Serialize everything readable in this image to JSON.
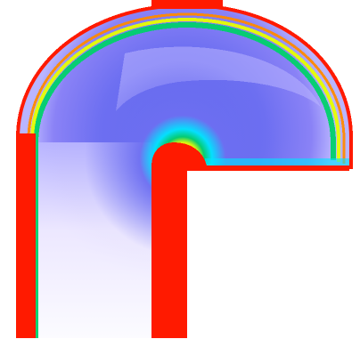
{
  "image": {
    "kind": "false-color flow field visualization (pixelated)",
    "palette": {
      "background": "#ffffff",
      "wall_red": "#ff1a00",
      "rim_orange": "#ff8a00",
      "rim_yellow": "#e7ff00",
      "rim_green": "#00d16b",
      "rim_cyan": "#00e5ff",
      "field_blue": "#6d6ff1",
      "field_violet": "#8a82f6",
      "field_lavender": "#b9b5ff",
      "field_pale": "#efeaff"
    }
  }
}
